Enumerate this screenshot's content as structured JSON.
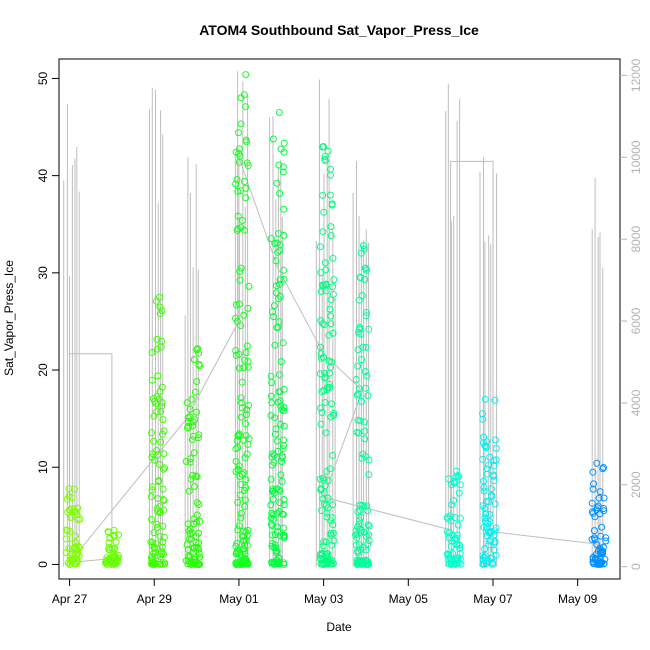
{
  "chart_data": {
    "type": "scatter",
    "title": "ATOM4 Southbound Sat_Vapor_Press_Ice",
    "xlabel": "Date",
    "ylabel": "Sat_Vapor_Press_Ice",
    "xlim": [
      "2016-04-26T18:00",
      "2016-05-10T00:00"
    ],
    "ylim": [
      -1.5,
      52
    ],
    "y2lim": [
      -300,
      12400
    ],
    "x_ticks": [
      {
        "date": "2016-04-27",
        "label": "Apr 27"
      },
      {
        "date": "2016-04-29",
        "label": "Apr 29"
      },
      {
        "date": "2016-05-01",
        "label": "May 01"
      },
      {
        "date": "2016-05-03",
        "label": "May 03"
      },
      {
        "date": "2016-05-05",
        "label": "May 05"
      },
      {
        "date": "2016-05-07",
        "label": "May 07"
      },
      {
        "date": "2016-05-09",
        "label": "May 09"
      }
    ],
    "y_ticks": [
      0,
      10,
      20,
      30,
      40,
      50
    ],
    "y2_ticks": [
      0,
      2000,
      4000,
      6000,
      8000,
      10000,
      12000
    ],
    "grid": false,
    "legend": "none",
    "point_colors": {
      "start": "#7fff00",
      "mid": "#00ff40",
      "late": "#00ffcc",
      "end": "#0090ff"
    },
    "line_color": "#bebebe",
    "flights": [
      {
        "date": "2016-04-27T02:00",
        "ymax": 7.8,
        "altmax": 11300,
        "color": "#7fff00"
      },
      {
        "date": "2016-04-28T00:00",
        "ymax": 3.5,
        "altmax": 0,
        "color": "#66ff00"
      },
      {
        "date": "2016-04-29T02:00",
        "ymax": 27.5,
        "altmax": 11700,
        "color": "#3cff00"
      },
      {
        "date": "2016-04-29T22:00",
        "ymax": 22.2,
        "altmax": 10000,
        "color": "#22ff00"
      },
      {
        "date": "2016-05-01T02:00",
        "ymax": 50.4,
        "altmax": 12100,
        "color": "#14ff20"
      },
      {
        "date": "2016-05-01T22:00",
        "ymax": 46.5,
        "altmax": 11000,
        "color": "#00ff40"
      },
      {
        "date": "2016-05-03T02:00",
        "ymax": 43.0,
        "altmax": 11900,
        "color": "#00ff80"
      },
      {
        "date": "2016-05-03T22:00",
        "ymax": 32.8,
        "altmax": 9900,
        "color": "#00ff99"
      },
      {
        "date": "2016-05-06T02:00",
        "ymax": 9.6,
        "altmax": 11800,
        "color": "#00ffcc"
      },
      {
        "date": "2016-05-06T22:00",
        "ymax": 17.0,
        "altmax": 10000,
        "color": "#00f0f0"
      },
      {
        "date": "2016-05-09T12:00",
        "ymax": 10.4,
        "altmax": 9500,
        "color": "#0090ff"
      }
    ],
    "connector_path": [
      {
        "date": "2016-04-27T00:00",
        "alt": 0
      },
      {
        "date": "2016-04-27T00:00",
        "alt": 5200
      },
      {
        "date": "2016-04-28T00:00",
        "alt": 5200
      },
      {
        "date": "2016-04-28T00:00",
        "alt": 200
      },
      {
        "date": "2016-04-27T00:00",
        "alt": 100
      },
      {
        "date": "2016-04-29T18:00",
        "alt": 3600
      },
      {
        "date": "2016-05-01T00:00",
        "alt": 6000
      },
      {
        "date": "2016-05-01T00:00",
        "alt": 10000
      },
      {
        "date": "2016-05-01T22:00",
        "alt": 7300
      },
      {
        "date": "2016-05-03T00:00",
        "alt": 5200
      },
      {
        "date": "2016-05-03T22:00",
        "alt": 4300
      },
      {
        "date": "2016-05-03T00:00",
        "alt": 1700
      },
      {
        "date": "2016-05-06T00:00",
        "alt": 900
      },
      {
        "date": "2016-05-06T00:00",
        "alt": 9900
      },
      {
        "date": "2016-05-07T00:00",
        "alt": 9900
      },
      {
        "date": "2016-05-07T00:00",
        "alt": 850
      },
      {
        "date": "2016-05-09T12:00",
        "alt": 550
      }
    ]
  }
}
